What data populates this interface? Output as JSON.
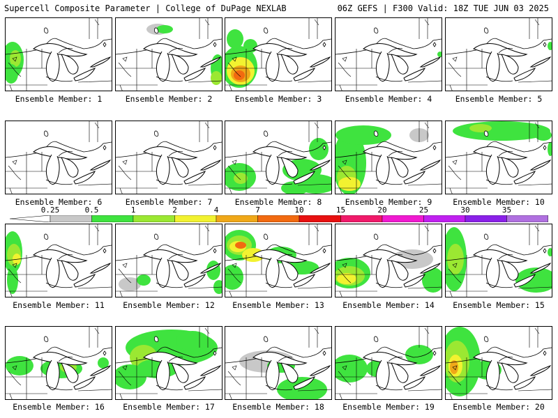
{
  "header": {
    "title_left": "Supercell Composite Parameter | College of DuPage NEXLAB",
    "title_right": "06Z GEFS | F300 Valid: 18Z TUE JUN 03 2025"
  },
  "legend": {
    "labels": [
      "0.25",
      "0.5",
      "1",
      "2",
      "4",
      "7",
      "10",
      "15",
      "20",
      "25",
      "30",
      "35"
    ],
    "colors": [
      "#c8c8c8",
      "#3fe33f",
      "#9be832",
      "#f2f230",
      "#f0a818",
      "#f26a10",
      "#e81010",
      "#f01a6a",
      "#f01ad0",
      "#c020f0",
      "#8a20e8",
      "#b070e0",
      "#20e8e8"
    ]
  },
  "members": [
    {
      "label": "Ensemble Member: 1"
    },
    {
      "label": "Ensemble Member: 2"
    },
    {
      "label": "Ensemble Member: 3"
    },
    {
      "label": "Ensemble Member: 4"
    },
    {
      "label": "Ensemble Member: 5"
    },
    {
      "label": "Ensemble Member: 6"
    },
    {
      "label": "Ensemble Member: 7"
    },
    {
      "label": "Ensemble Member: 8"
    },
    {
      "label": "Ensemble Member: 9"
    },
    {
      "label": "Ensemble Member: 10"
    },
    {
      "label": "Ensemble Member: 11"
    },
    {
      "label": "Ensemble Member: 12"
    },
    {
      "label": "Ensemble Member: 13"
    },
    {
      "label": "Ensemble Member: 14"
    },
    {
      "label": "Ensemble Member: 15"
    },
    {
      "label": "Ensemble Member: 16"
    },
    {
      "label": "Ensemble Member: 17"
    },
    {
      "label": "Ensemble Member: 18"
    },
    {
      "label": "Ensemble Member: 19"
    },
    {
      "label": "Ensemble Member: 20"
    }
  ]
}
